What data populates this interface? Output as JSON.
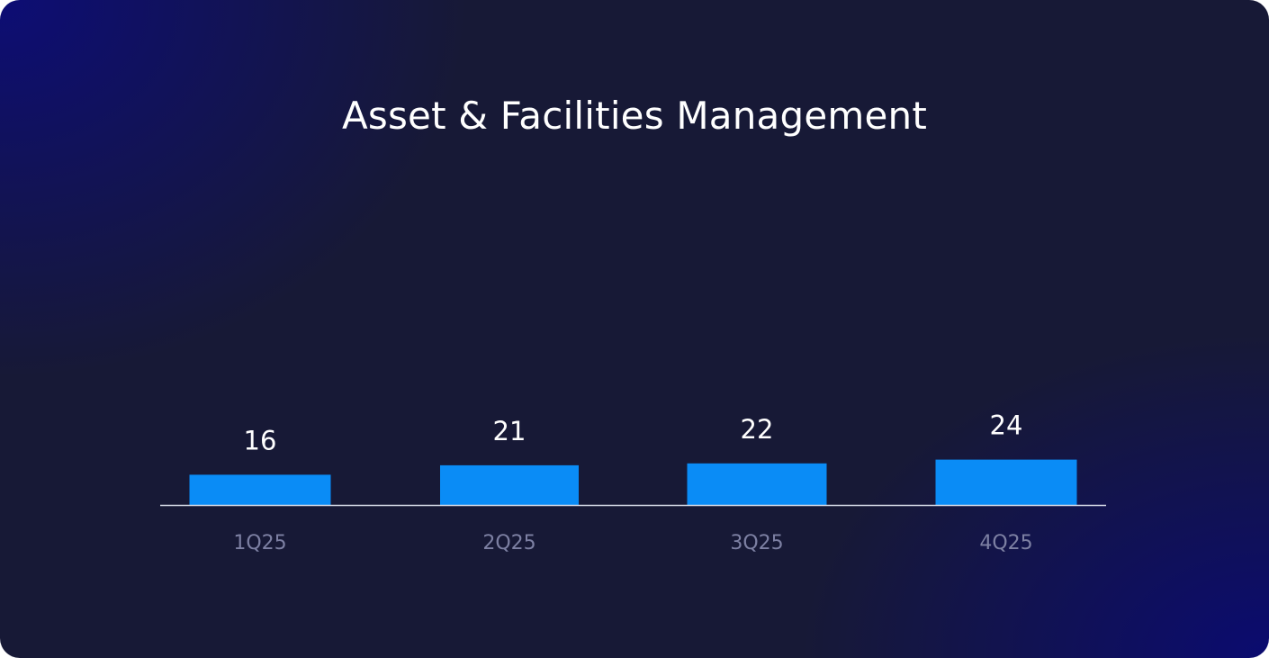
{
  "chart_data": {
    "type": "bar",
    "title": "Asset & Facilities Management",
    "categories": [
      "1Q25",
      "2Q25",
      "3Q25",
      "4Q25"
    ],
    "values": [
      16,
      21,
      22,
      24
    ],
    "xlabel": "",
    "ylabel": "",
    "grid": false,
    "colors": {
      "bar": "#0a8cf6",
      "axis": "#d7dbe8",
      "tick_label": "#7d80a3",
      "value_label": "#ffffff"
    }
  }
}
